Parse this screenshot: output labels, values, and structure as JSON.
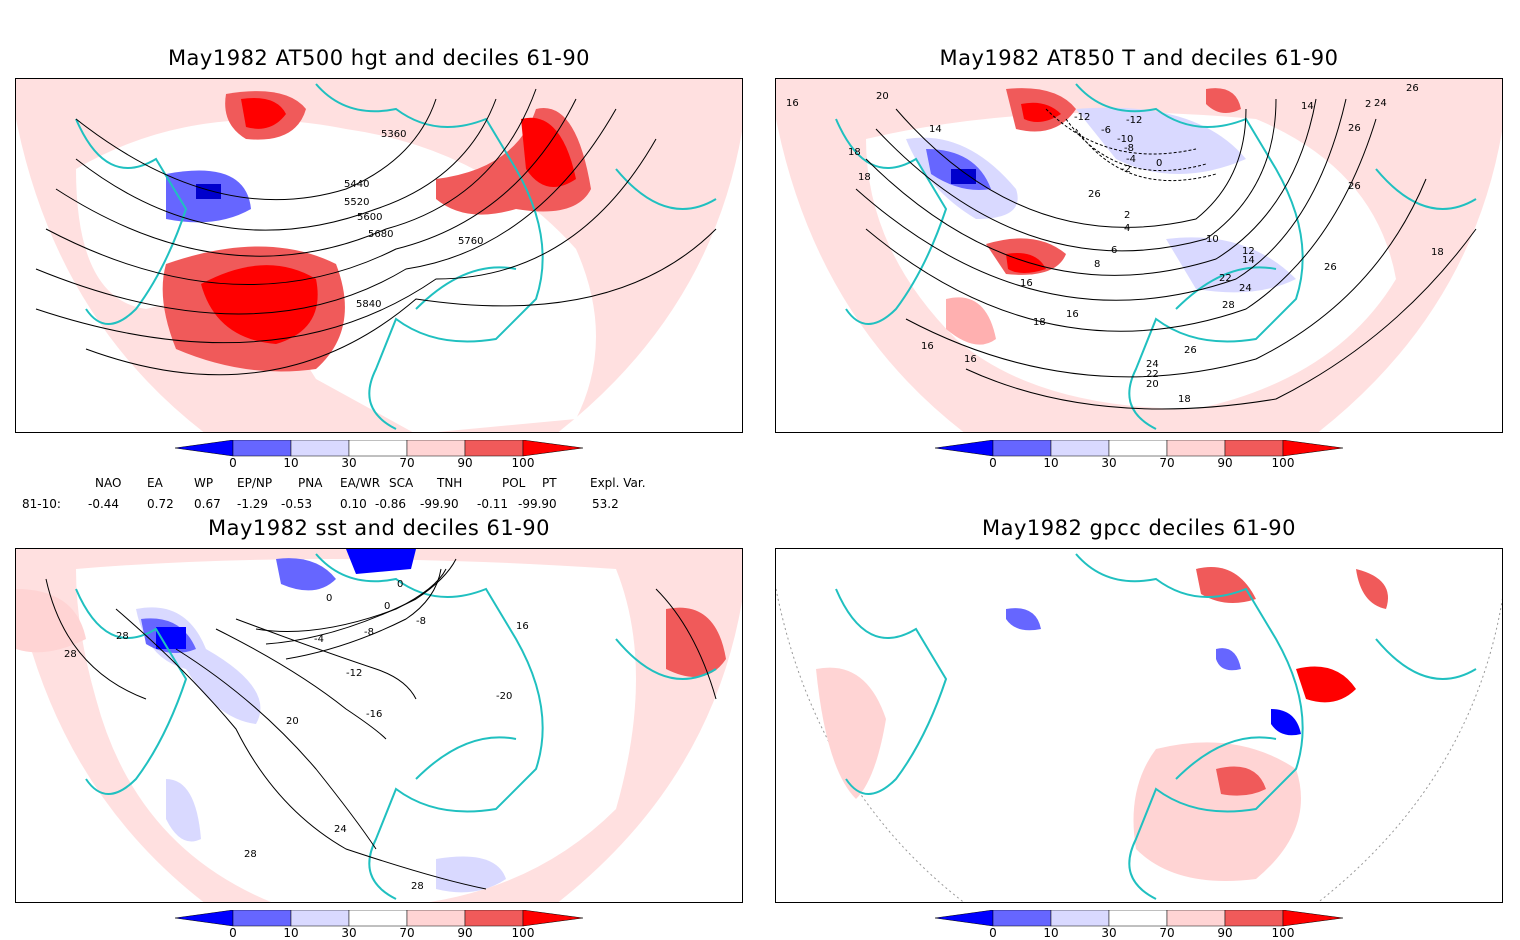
{
  "panels": [
    {
      "title": "May1982 AT500 hgt and deciles 61-90",
      "contour_labels": [
        "5360",
        "5440",
        "5520",
        "5600",
        "5680",
        "5760",
        "5840"
      ]
    },
    {
      "title": "May1982 AT850 T and deciles 61-90",
      "contour_labels": [
        "16",
        "20",
        "14",
        "18",
        "18",
        "-12",
        "-12",
        "-6",
        "-10",
        "-8",
        "-4",
        "-2",
        "0",
        "2",
        "4",
        "6",
        "8",
        "10",
        "12",
        "14",
        "16",
        "16",
        "18",
        "16",
        "16",
        "22",
        "24",
        "28",
        "26",
        "24",
        "22",
        "20",
        "18",
        "26",
        "18",
        "14",
        "24",
        "26",
        "26",
        "26",
        "2",
        "26"
      ]
    },
    {
      "title": "May1982 sst and deciles 61-90",
      "contour_labels": [
        "28",
        "28",
        "0",
        "0",
        "-4",
        "-8",
        "-12",
        "-16",
        "-20",
        "20",
        "16",
        "24",
        "28",
        "28",
        "0",
        "-8"
      ]
    },
    {
      "title": "May1982 gpcc deciles 61-90",
      "contour_labels": []
    }
  ],
  "colorbar": {
    "labels": [
      "0",
      "10",
      "30",
      "70",
      "90",
      "100"
    ],
    "colors": [
      "#0000ff",
      "#6666ff",
      "#d9d9ff",
      "#ffffff",
      "#ffd4d4",
      "#f05a5a",
      "#ff0000"
    ]
  },
  "indices": {
    "headers": [
      "NAO",
      "EA",
      "WP",
      "EP/NP",
      "PNA",
      "EA/WR",
      "SCA",
      "TNH",
      "POL",
      "PT",
      "Expl. Var."
    ],
    "row_label": "81-10:",
    "values": [
      "-0.44",
      "0.72",
      "0.67",
      "-1.29",
      "-0.53",
      "0.10",
      "-0.86",
      "-99.90",
      "-0.11",
      "-99.90",
      "53.2"
    ]
  },
  "colors": {
    "coast": "#20c0c0",
    "contour": "#000000",
    "frame": "#000000"
  }
}
